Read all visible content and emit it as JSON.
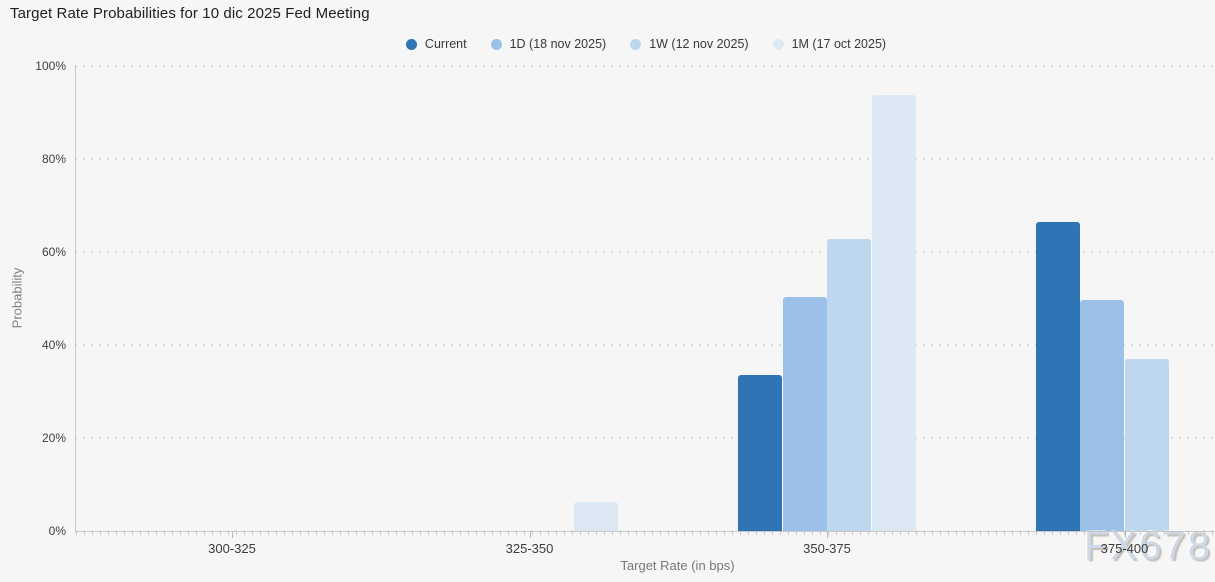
{
  "title": "Target Rate Probabilities for 10 dic 2025 Fed Meeting",
  "watermark": "FX678",
  "chart_data": {
    "type": "bar",
    "title": "Target Rate Probabilities for 10 dic 2025 Fed Meeting",
    "xlabel": "Target Rate (in bps)",
    "ylabel": "Probability",
    "categories": [
      "300-325",
      "325-350",
      "350-375",
      "375-400"
    ],
    "series": [
      {
        "name": "Current",
        "color": "#2F74B5",
        "values": [
          0,
          0,
          33.5,
          66.5
        ]
      },
      {
        "name": "1D (18 nov 2025)",
        "color": "#9CC1E8",
        "values": [
          0,
          0,
          50.3,
          49.7
        ]
      },
      {
        "name": "1W (12 nov 2025)",
        "color": "#BED7EE",
        "values": [
          0,
          0,
          62.9,
          37.0
        ]
      },
      {
        "name": "1M (17 oct 2025)",
        "color": "#DCE9F5",
        "values": [
          0,
          6.3,
          93.7,
          0
        ]
      }
    ],
    "ylim": [
      0,
      100
    ],
    "yticks": [
      "0%",
      "20%",
      "40%",
      "60%",
      "80%",
      "100%"
    ],
    "grid": "dotted horizontal",
    "legend_position": "top-center"
  }
}
